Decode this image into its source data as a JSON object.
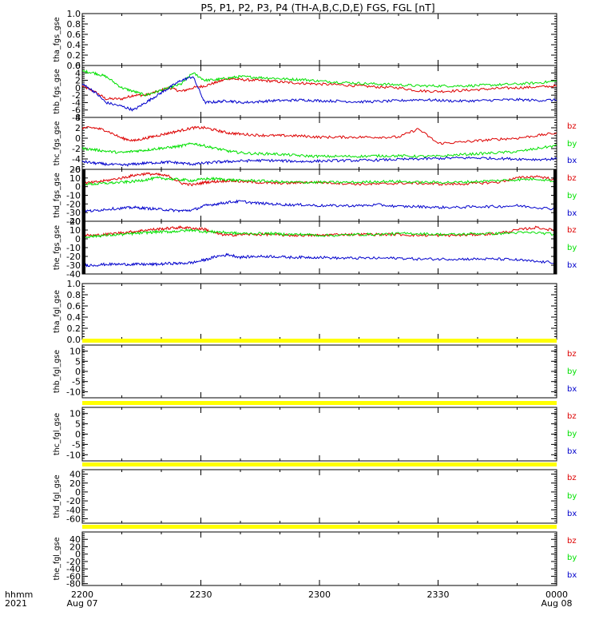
{
  "title": "P5, P1, P2, P3, P4 (TH-A,B,C,D,E) FGS, FGL [nT]",
  "time_axis": {
    "row_label": "hhmm",
    "year_label": "2021",
    "ticks": [
      {
        "label": "2200",
        "date": "Aug 07"
      },
      {
        "label": "2230",
        "date": ""
      },
      {
        "label": "2300",
        "date": ""
      },
      {
        "label": "2330",
        "date": ""
      },
      {
        "label": "0000",
        "date": "Aug 08"
      }
    ]
  },
  "colors": {
    "bx": "#0000cc",
    "by": "#00e000",
    "bz": "#dd0000",
    "data_gap": "#ffff00",
    "edge_marks": "#000000"
  },
  "legend_labels": [
    "bz",
    "by",
    "bx"
  ],
  "chart_data": [
    {
      "type": "line",
      "ylabel": "tha_fgs_gse",
      "ylim": [
        0,
        1
      ],
      "ticks": [
        "0.0",
        "0.2",
        "0.4",
        "0.6",
        "0.8",
        "1.0"
      ],
      "legend": false,
      "series": []
    },
    {
      "type": "line",
      "ylabel": "thb_fgs_gse",
      "ylim": [
        -8,
        6
      ],
      "ticks": [
        "-8",
        "-6",
        "-4",
        "-2",
        "0",
        "2",
        "4",
        "6"
      ],
      "legend": true,
      "x": [
        "22:00",
        "22:03",
        "22:06",
        "22:10",
        "22:13",
        "22:16",
        "22:19",
        "22:22",
        "22:25",
        "22:28",
        "22:31",
        "22:34",
        "22:37",
        "22:40",
        "22:44",
        "22:48",
        "22:52",
        "22:56",
        "23:00",
        "23:05",
        "23:10",
        "23:15",
        "23:20",
        "23:25",
        "23:30",
        "23:35",
        "23:40",
        "23:45",
        "23:50",
        "23:55",
        "00:00"
      ],
      "series": [
        {
          "name": "bz",
          "values": [
            0.5,
            -1,
            -3,
            -3,
            -2,
            -2,
            -1,
            0,
            -1,
            0,
            0.5,
            1.5,
            2.5,
            2.2,
            2,
            1.8,
            1.4,
            1.2,
            1,
            0.8,
            0.5,
            0.2,
            0,
            -0.8,
            -1,
            -0.8,
            -0.5,
            -0.2,
            0,
            0.2,
            0.5
          ]
        },
        {
          "name": "by",
          "values": [
            4.5,
            4,
            3,
            0,
            -1,
            -2,
            -1,
            0,
            1,
            4,
            2,
            2.2,
            2.6,
            3,
            2.8,
            2.6,
            2.3,
            2.2,
            1.8,
            1.5,
            1.2,
            1,
            0.8,
            0.5,
            0.5,
            0.5,
            0.6,
            0.8,
            1,
            1.3,
            1.8
          ]
        },
        {
          "name": "bx",
          "values": [
            1,
            -1,
            -4,
            -5,
            -6,
            -4,
            -2,
            0,
            2,
            3,
            -4,
            -3.8,
            -3.5,
            -4,
            -3.8,
            -3.5,
            -3.4,
            -3.3,
            -3.5,
            -3.6,
            -3.8,
            -3.7,
            -3.5,
            -3.2,
            -3.4,
            -3.6,
            -3.5,
            -3.3,
            -3.2,
            -3.4,
            -3.3
          ]
        }
      ]
    },
    {
      "type": "line",
      "ylabel": "thc_fgs_gse",
      "ylim": [
        -6,
        4
      ],
      "ticks": [
        "-6",
        "-4",
        "-2",
        "0",
        "2",
        "4"
      ],
      "legend": true,
      "x": [
        "22:00",
        "22:03",
        "22:06",
        "22:10",
        "22:13",
        "22:16",
        "22:19",
        "22:22",
        "22:25",
        "22:28",
        "22:31",
        "22:34",
        "22:37",
        "22:40",
        "22:44",
        "22:48",
        "22:52",
        "22:56",
        "23:00",
        "23:05",
        "23:10",
        "23:15",
        "23:20",
        "23:25",
        "23:30",
        "23:35",
        "23:40",
        "23:45",
        "23:50",
        "23:55",
        "00:00"
      ],
      "series": [
        {
          "name": "bz",
          "values": [
            2,
            2,
            1.5,
            0,
            -0.5,
            0,
            0.5,
            1,
            1.5,
            2,
            2,
            1.5,
            1,
            0.8,
            0.6,
            0.5,
            0.5,
            0.4,
            0.2,
            0.2,
            0.2,
            0.2,
            0.2,
            1.8,
            -1,
            -0.8,
            -0.5,
            -0.2,
            0,
            0.5,
            1
          ]
        },
        {
          "name": "by",
          "values": [
            -2,
            -2.2,
            -2.5,
            -2.8,
            -2.5,
            -2.3,
            -2,
            -1.8,
            -1.5,
            -1,
            -1.5,
            -2,
            -2.5,
            -2.8,
            -3,
            -3,
            -3.2,
            -3.4,
            -3.5,
            -3.5,
            -3.5,
            -3.4,
            -3.4,
            -3.5,
            -3.5,
            -3.2,
            -3,
            -2.8,
            -2.6,
            -2,
            -1.4
          ]
        },
        {
          "name": "bx",
          "values": [
            -4.5,
            -4.8,
            -5,
            -5.2,
            -5,
            -4.8,
            -4.7,
            -4.6,
            -4.8,
            -5,
            -4.8,
            -4.6,
            -4.5,
            -4.4,
            -4.3,
            -4.3,
            -4.4,
            -4.5,
            -4.4,
            -4.3,
            -4.3,
            -4.2,
            -4.1,
            -4,
            -3.9,
            -3.8,
            -3.8,
            -3.9,
            -4,
            -4.1,
            -4
          ]
        }
      ]
    },
    {
      "type": "line",
      "ylabel": "thd_fgs_gse",
      "ylim": [
        -40,
        20
      ],
      "ticks": [
        "-40",
        "-30",
        "-20",
        "-10",
        "0",
        "10",
        "20"
      ],
      "legend": true,
      "x": [
        "22:00",
        "22:03",
        "22:06",
        "22:10",
        "22:13",
        "22:16",
        "22:19",
        "22:22",
        "22:25",
        "22:28",
        "22:31",
        "22:34",
        "22:37",
        "22:40",
        "22:44",
        "22:48",
        "22:52",
        "22:56",
        "23:00",
        "23:05",
        "23:10",
        "23:15",
        "23:20",
        "23:25",
        "23:30",
        "23:35",
        "23:40",
        "23:45",
        "23:50",
        "23:55",
        "00:00"
      ],
      "series": [
        {
          "name": "bz",
          "values": [
            4,
            5,
            7,
            10,
            13,
            15,
            14,
            12,
            4,
            2,
            5,
            6,
            7,
            6,
            5,
            4,
            4,
            5,
            5,
            4,
            3,
            3,
            4,
            4,
            3,
            3,
            4,
            5,
            10,
            12,
            8
          ]
        },
        {
          "name": "by",
          "values": [
            3,
            3,
            4,
            5,
            6,
            8,
            10,
            9,
            8,
            7,
            9,
            9,
            8,
            7,
            7,
            6,
            5,
            5,
            5,
            5,
            5,
            6,
            6,
            5,
            5,
            5,
            6,
            7,
            8,
            9,
            6
          ]
        },
        {
          "name": "bx",
          "values": [
            -28,
            -28,
            -26,
            -25,
            -24,
            -25,
            -26,
            -27,
            -28,
            -27,
            -22,
            -20,
            -18,
            -17,
            -19,
            -20,
            -21,
            -21,
            -22,
            -22,
            -22,
            -21,
            -23,
            -23,
            -24,
            -24,
            -23,
            -23,
            -22,
            -24,
            -26
          ]
        }
      ]
    },
    {
      "type": "line",
      "ylabel": "the_fgs_gse",
      "ylim": [
        -40,
        20
      ],
      "ticks": [
        "-40",
        "-30",
        "-20",
        "-10",
        "0",
        "10",
        "20"
      ],
      "legend": true,
      "x": [
        "22:00",
        "22:03",
        "22:06",
        "22:10",
        "22:13",
        "22:16",
        "22:19",
        "22:22",
        "22:25",
        "22:28",
        "22:31",
        "22:34",
        "22:37",
        "22:40",
        "22:44",
        "22:48",
        "22:52",
        "22:56",
        "23:00",
        "23:05",
        "23:10",
        "23:15",
        "23:20",
        "23:25",
        "23:30",
        "23:35",
        "23:40",
        "23:45",
        "23:50",
        "23:55",
        "00:00"
      ],
      "series": [
        {
          "name": "bz",
          "values": [
            4,
            4,
            5,
            7,
            8,
            10,
            11,
            12,
            13,
            12,
            11,
            6,
            4,
            5,
            5,
            5,
            4,
            4,
            4,
            5,
            5,
            5,
            5,
            4,
            4,
            4,
            5,
            6,
            10,
            13,
            9
          ]
        },
        {
          "name": "by",
          "values": [
            2,
            3,
            4,
            5,
            6,
            7,
            8,
            8,
            9,
            10,
            8,
            8,
            7,
            6,
            6,
            6,
            5,
            5,
            4,
            4,
            5,
            5,
            6,
            6,
            5,
            5,
            6,
            6,
            7,
            7,
            5
          ]
        },
        {
          "name": "bx",
          "values": [
            -30,
            -30,
            -29,
            -29,
            -29,
            -29,
            -29,
            -28,
            -28,
            -27,
            -24,
            -20,
            -18,
            -21,
            -20,
            -20,
            -21,
            -21,
            -21,
            -22,
            -22,
            -22,
            -22,
            -23,
            -23,
            -23,
            -23,
            -23,
            -24,
            -26,
            -27
          ]
        }
      ]
    },
    {
      "type": "line",
      "ylabel": "tha_fgl_gse",
      "ylim": [
        0,
        1
      ],
      "ticks": [
        "0.0",
        "0.2",
        "0.4",
        "0.6",
        "0.8",
        "1.0"
      ],
      "legend": false,
      "series": []
    },
    {
      "type": "line",
      "ylabel": "thb_fgl_gse",
      "ylim": [
        -13,
        13
      ],
      "ticks": [
        "-10",
        "-5",
        "0",
        "5",
        "10"
      ],
      "legend": true,
      "series": []
    },
    {
      "type": "line",
      "ylabel": "thc_fgl_gse",
      "ylim": [
        -13,
        13
      ],
      "ticks": [
        "-10",
        "-5",
        "0",
        "5",
        "10"
      ],
      "legend": true,
      "series": []
    },
    {
      "type": "line",
      "ylabel": "thd_fgl_gse",
      "ylim": [
        -70,
        50
      ],
      "ticks": [
        "-60",
        "-40",
        "-20",
        "0",
        "20",
        "40"
      ],
      "legend": true,
      "series": []
    },
    {
      "type": "line",
      "ylabel": "the_fgl_gse",
      "ylim": [
        -85,
        60
      ],
      "ticks": [
        "-80",
        "-60",
        "-40",
        "-20",
        "0",
        "20",
        "40"
      ],
      "legend": true,
      "series": []
    }
  ]
}
